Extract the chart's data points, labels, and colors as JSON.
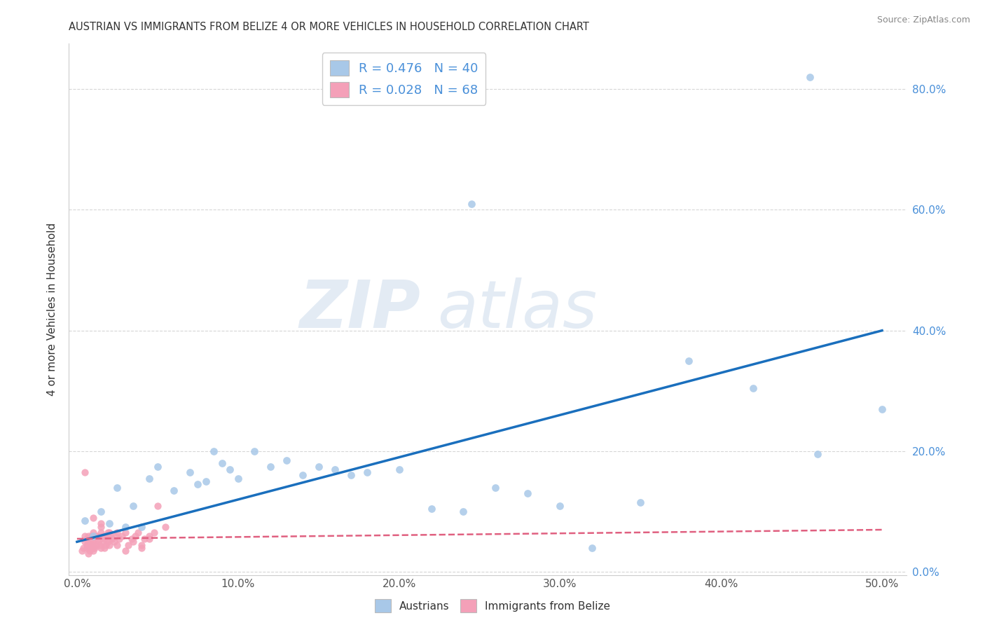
{
  "title": "AUSTRIAN VS IMMIGRANTS FROM BELIZE 4 OR MORE VEHICLES IN HOUSEHOLD CORRELATION CHART",
  "source": "Source: ZipAtlas.com",
  "ylabel": "4 or more Vehicles in Household",
  "x_ticks_labels": [
    "0.0%",
    "10.0%",
    "20.0%",
    "30.0%",
    "40.0%",
    "50.0%"
  ],
  "x_tick_vals": [
    0.0,
    0.1,
    0.2,
    0.3,
    0.4,
    0.5
  ],
  "y_ticks_labels": [
    "0.0%",
    "20.0%",
    "40.0%",
    "60.0%",
    "80.0%"
  ],
  "y_tick_vals": [
    0.0,
    0.2,
    0.4,
    0.6,
    0.8
  ],
  "xlim": [
    -0.005,
    0.515
  ],
  "ylim": [
    -0.005,
    0.875
  ],
  "austrians_R": 0.476,
  "austrians_N": 40,
  "belize_R": 0.028,
  "belize_N": 68,
  "austrians_color": "#a8c8e8",
  "belize_color": "#f4a0b8",
  "trendline_austrians_color": "#1a6fbd",
  "trendline_belize_color": "#e06080",
  "legend_label_austrians": "Austrians",
  "legend_label_belize": "Immigrants from Belize",
  "watermark_zip": "ZIP",
  "watermark_atlas": "atlas",
  "austrians_x": [
    0.005,
    0.01,
    0.015,
    0.02,
    0.025,
    0.03,
    0.035,
    0.04,
    0.045,
    0.05,
    0.06,
    0.07,
    0.075,
    0.08,
    0.085,
    0.09,
    0.095,
    0.1,
    0.11,
    0.12,
    0.13,
    0.14,
    0.15,
    0.16,
    0.17,
    0.18,
    0.2,
    0.22,
    0.24,
    0.26,
    0.28,
    0.3,
    0.32,
    0.35,
    0.38,
    0.42,
    0.46,
    0.5,
    0.245,
    0.455
  ],
  "austrians_y": [
    0.085,
    0.06,
    0.1,
    0.08,
    0.14,
    0.075,
    0.11,
    0.075,
    0.155,
    0.175,
    0.135,
    0.165,
    0.145,
    0.15,
    0.2,
    0.18,
    0.17,
    0.155,
    0.2,
    0.175,
    0.185,
    0.16,
    0.175,
    0.17,
    0.16,
    0.165,
    0.17,
    0.105,
    0.1,
    0.14,
    0.13,
    0.11,
    0.04,
    0.115,
    0.35,
    0.305,
    0.195,
    0.27,
    0.61,
    0.82
  ],
  "belize_x": [
    0.003,
    0.004,
    0.005,
    0.005,
    0.006,
    0.006,
    0.007,
    0.007,
    0.008,
    0.008,
    0.009,
    0.009,
    0.01,
    0.01,
    0.01,
    0.011,
    0.011,
    0.012,
    0.012,
    0.013,
    0.013,
    0.014,
    0.014,
    0.015,
    0.015,
    0.015,
    0.016,
    0.016,
    0.017,
    0.017,
    0.018,
    0.018,
    0.019,
    0.019,
    0.02,
    0.02,
    0.021,
    0.022,
    0.023,
    0.024,
    0.025,
    0.026,
    0.028,
    0.03,
    0.032,
    0.034,
    0.036,
    0.038,
    0.04,
    0.042,
    0.045,
    0.048,
    0.05,
    0.055,
    0.01,
    0.015,
    0.02,
    0.025,
    0.03,
    0.035,
    0.04,
    0.045,
    0.006,
    0.007,
    0.008,
    0.009,
    0.01,
    0.005
  ],
  "belize_y": [
    0.035,
    0.04,
    0.05,
    0.06,
    0.045,
    0.055,
    0.03,
    0.06,
    0.04,
    0.055,
    0.045,
    0.06,
    0.05,
    0.065,
    0.035,
    0.04,
    0.055,
    0.045,
    0.06,
    0.05,
    0.06,
    0.045,
    0.055,
    0.065,
    0.04,
    0.075,
    0.05,
    0.06,
    0.04,
    0.055,
    0.045,
    0.06,
    0.05,
    0.065,
    0.055,
    0.045,
    0.06,
    0.055,
    0.05,
    0.06,
    0.065,
    0.055,
    0.06,
    0.065,
    0.045,
    0.055,
    0.06,
    0.065,
    0.045,
    0.055,
    0.06,
    0.065,
    0.11,
    0.075,
    0.09,
    0.08,
    0.065,
    0.045,
    0.035,
    0.05,
    0.04,
    0.055,
    0.04,
    0.05,
    0.035,
    0.045,
    0.04,
    0.165
  ],
  "trendline_austrians_x0": 0.0,
  "trendline_austrians_x1": 0.5,
  "trendline_austrians_y0": 0.05,
  "trendline_austrians_y1": 0.4,
  "trendline_belize_x0": 0.0,
  "trendline_belize_x1": 0.5,
  "trendline_belize_y0": 0.055,
  "trendline_belize_y1": 0.07
}
